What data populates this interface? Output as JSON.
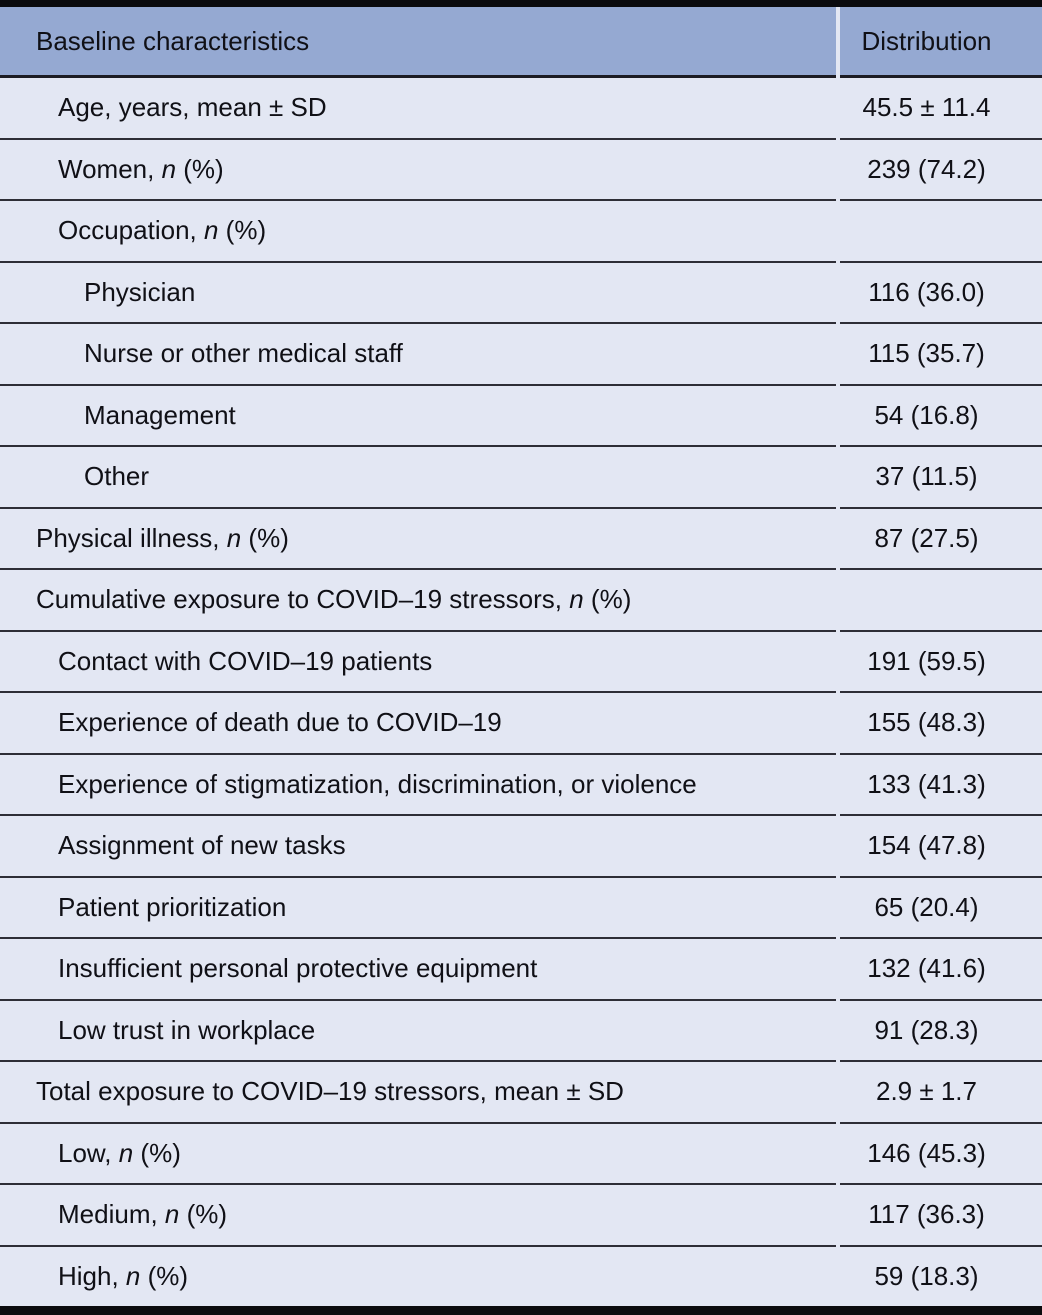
{
  "table": {
    "columns": [
      "Baseline characteristics",
      "Distribution"
    ],
    "rows": [
      {
        "label": "Age, years, mean ± SD",
        "value": "45.5 ± 11.4",
        "indent": 1
      },
      {
        "label": "Women, n (%)",
        "value": "239 (74.2)",
        "indent": 1
      },
      {
        "label": "Occupation, n (%)",
        "value": "",
        "indent": 1
      },
      {
        "label": "Physician",
        "value": "116 (36.0)",
        "indent": 2
      },
      {
        "label": "Nurse or other medical staff",
        "value": "115 (35.7)",
        "indent": 2
      },
      {
        "label": "Management",
        "value": "54 (16.8)",
        "indent": 2
      },
      {
        "label": "Other",
        "value": "37 (11.5)",
        "indent": 2
      },
      {
        "label": "Physical illness, n (%)",
        "value": "87 (27.5)",
        "indent": 0
      },
      {
        "label": "Cumulative exposure to COVID–19 stressors, n (%)",
        "value": "",
        "indent": 0
      },
      {
        "label": "Contact with COVID–19 patients",
        "value": "191 (59.5)",
        "indent": 1
      },
      {
        "label": "Experience of death due to COVID–19",
        "value": "155 (48.3)",
        "indent": 1
      },
      {
        "label": "Experience of stigmatization, discrimination, or violence",
        "value": "133 (41.3)",
        "indent": 1
      },
      {
        "label": "Assignment of new tasks",
        "value": "154 (47.8)",
        "indent": 1
      },
      {
        "label": "Patient prioritization",
        "value": "65 (20.4)",
        "indent": 1
      },
      {
        "label": "Insufficient personal protective equipment",
        "value": "132 (41.6)",
        "indent": 1
      },
      {
        "label": "Low trust in workplace",
        "value": "91 (28.3)",
        "indent": 1
      },
      {
        "label": "Total exposure to COVID–19 stressors, mean ± SD",
        "value": "2.9 ± 1.7",
        "indent": 0
      },
      {
        "label": "Low, n (%)",
        "value": "146 (45.3)",
        "indent": 1
      },
      {
        "label": "Medium, n (%)",
        "value": "117 (36.3)",
        "indent": 1
      },
      {
        "label": "High, n (%)",
        "value": "59 (18.3)",
        "indent": 1
      }
    ],
    "colors": {
      "header_bg": "#95a9d2",
      "body_bg": "#e3e7f3",
      "frame": "#0b0b0e",
      "heavy_line": "#1c1c24",
      "separator": "#2e2e36",
      "text": "#101016"
    }
  }
}
